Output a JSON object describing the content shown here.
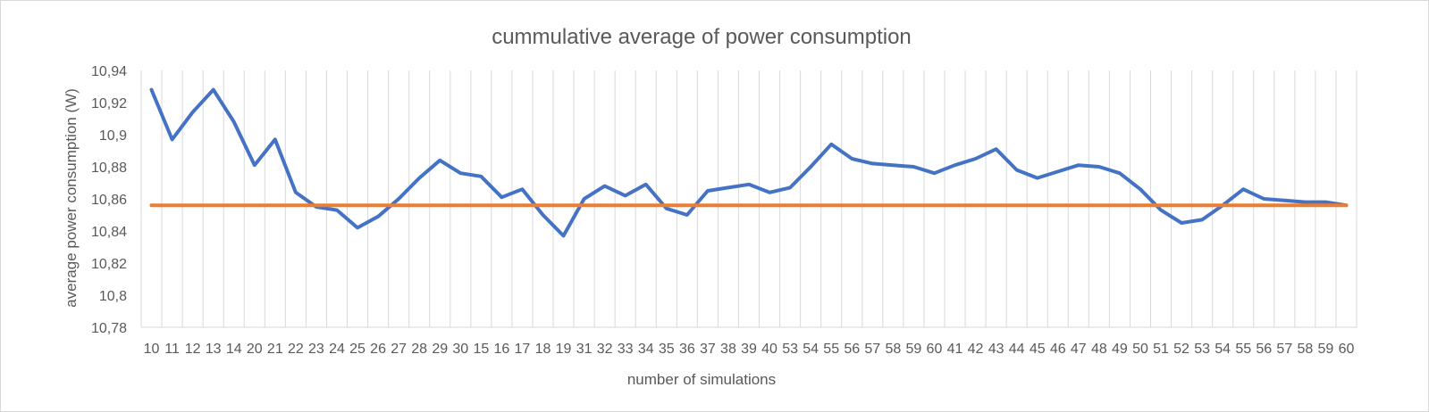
{
  "chart_data": {
    "type": "line",
    "title": "cummulative average of power consumption",
    "xlabel": "number of simulations",
    "ylabel": "average power consumption (W)",
    "ylim": [
      10.78,
      10.94
    ],
    "yticks": [
      "10,78",
      "10,8",
      "10,82",
      "10,84",
      "10,86",
      "10,88",
      "10,9",
      "10,92",
      "10,94"
    ],
    "grid": "vertical",
    "legend": "none",
    "categories": [
      "10",
      "11",
      "12",
      "13",
      "14",
      "20",
      "21",
      "22",
      "23",
      "24",
      "25",
      "26",
      "27",
      "28",
      "29",
      "30",
      "15",
      "16",
      "17",
      "18",
      "19",
      "31",
      "32",
      "33",
      "34",
      "35",
      "36",
      "37",
      "38",
      "39",
      "40",
      "53",
      "54",
      "55",
      "56",
      "57",
      "58",
      "59",
      "60",
      "41",
      "42",
      "43",
      "44",
      "45",
      "46",
      "47",
      "48",
      "49",
      "50",
      "51",
      "52",
      "53",
      "54",
      "55",
      "56",
      "57",
      "58",
      "59",
      "60"
    ],
    "series": [
      {
        "color": "#4472c4",
        "values": [
          10.928,
          10.897,
          10.914,
          10.928,
          10.908,
          10.881,
          10.897,
          10.864,
          10.855,
          10.853,
          10.842,
          10.849,
          10.86,
          10.873,
          10.884,
          10.876,
          10.874,
          10.861,
          10.866,
          10.85,
          10.837,
          10.86,
          10.868,
          10.862,
          10.869,
          10.854,
          10.85,
          10.865,
          10.867,
          10.869,
          10.864,
          10.867,
          10.88,
          10.894,
          10.885,
          10.882,
          10.881,
          10.88,
          10.876,
          10.881,
          10.885,
          10.891,
          10.878,
          10.873,
          10.877,
          10.881,
          10.88,
          10.876,
          10.866,
          10.853,
          10.845,
          10.847,
          10.856,
          10.866,
          10.86,
          10.859,
          10.858,
          10.858,
          10.856
        ]
      },
      {
        "color": "#ed7d31",
        "values": [
          10.856,
          10.856,
          10.856,
          10.856,
          10.856,
          10.856,
          10.856,
          10.856,
          10.856,
          10.856,
          10.856,
          10.856,
          10.856,
          10.856,
          10.856,
          10.856,
          10.856,
          10.856,
          10.856,
          10.856,
          10.856,
          10.856,
          10.856,
          10.856,
          10.856,
          10.856,
          10.856,
          10.856,
          10.856,
          10.856,
          10.856,
          10.856,
          10.856,
          10.856,
          10.856,
          10.856,
          10.856,
          10.856,
          10.856,
          10.856,
          10.856,
          10.856,
          10.856,
          10.856,
          10.856,
          10.856,
          10.856,
          10.856,
          10.856,
          10.856,
          10.856,
          10.856,
          10.856,
          10.856,
          10.856,
          10.856,
          10.856,
          10.856,
          10.856
        ]
      }
    ]
  }
}
